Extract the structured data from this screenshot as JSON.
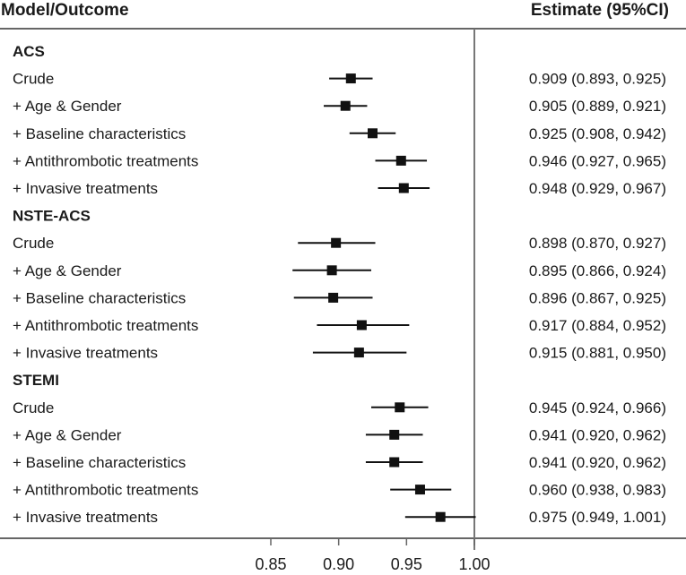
{
  "chart_data": {
    "type": "forest",
    "header_left": "Model/Outcome",
    "header_right": "Estimate (95%CI)",
    "xlim": [
      0.825,
      1.025
    ],
    "xticks": [
      0.85,
      0.9,
      0.95,
      1.0
    ],
    "xtick_labels": [
      "0.85",
      "0.90",
      "0.95",
      "1.00"
    ],
    "reference_line": 1.0,
    "groups": [
      {
        "name": "ACS",
        "rows": [
          {
            "label": "Crude",
            "est": 0.909,
            "lo": 0.893,
            "hi": 0.925,
            "text": "0.909 (0.893, 0.925)"
          },
          {
            "label": "+ Age & Gender",
            "est": 0.905,
            "lo": 0.889,
            "hi": 0.921,
            "text": "0.905 (0.889, 0.921)"
          },
          {
            "label": "+ Baseline characteristics",
            "est": 0.925,
            "lo": 0.908,
            "hi": 0.942,
            "text": "0.925 (0.908, 0.942)"
          },
          {
            "label": "+ Antithrombotic treatments",
            "est": 0.946,
            "lo": 0.927,
            "hi": 0.965,
            "text": "0.946 (0.927, 0.965)"
          },
          {
            "label": "+ Invasive treatments",
            "est": 0.948,
            "lo": 0.929,
            "hi": 0.967,
            "text": "0.948 (0.929, 0.967)"
          }
        ]
      },
      {
        "name": "NSTE-ACS",
        "rows": [
          {
            "label": "Crude",
            "est": 0.898,
            "lo": 0.87,
            "hi": 0.927,
            "text": "0.898 (0.870, 0.927)"
          },
          {
            "label": "+ Age & Gender",
            "est": 0.895,
            "lo": 0.866,
            "hi": 0.924,
            "text": "0.895 (0.866, 0.924)"
          },
          {
            "label": "+ Baseline characteristics",
            "est": 0.896,
            "lo": 0.867,
            "hi": 0.925,
            "text": "0.896 (0.867, 0.925)"
          },
          {
            "label": "+ Antithrombotic treatments",
            "est": 0.917,
            "lo": 0.884,
            "hi": 0.952,
            "text": "0.917 (0.884, 0.952)"
          },
          {
            "label": "+ Invasive treatments",
            "est": 0.915,
            "lo": 0.881,
            "hi": 0.95,
            "text": "0.915 (0.881, 0.950)"
          }
        ]
      },
      {
        "name": "STEMI",
        "rows": [
          {
            "label": "Crude",
            "est": 0.945,
            "lo": 0.924,
            "hi": 0.966,
            "text": "0.945 (0.924, 0.966)"
          },
          {
            "label": "+ Age & Gender",
            "est": 0.941,
            "lo": 0.92,
            "hi": 0.962,
            "text": "0.941 (0.920, 0.962)"
          },
          {
            "label": "+ Baseline characteristics",
            "est": 0.941,
            "lo": 0.92,
            "hi": 0.962,
            "text": "0.941 (0.920, 0.962)"
          },
          {
            "label": "+ Antithrombotic treatments",
            "est": 0.96,
            "lo": 0.938,
            "hi": 0.983,
            "text": "0.960 (0.938, 0.983)"
          },
          {
            "label": "+ Invasive treatments",
            "est": 0.975,
            "lo": 0.949,
            "hi": 1.001,
            "text": "0.975 (0.949, 1.001)"
          }
        ]
      }
    ]
  },
  "colors": {
    "ink": "#111111",
    "rule": "#666666",
    "refline": "#777777",
    "text": "#1a1a1a"
  }
}
